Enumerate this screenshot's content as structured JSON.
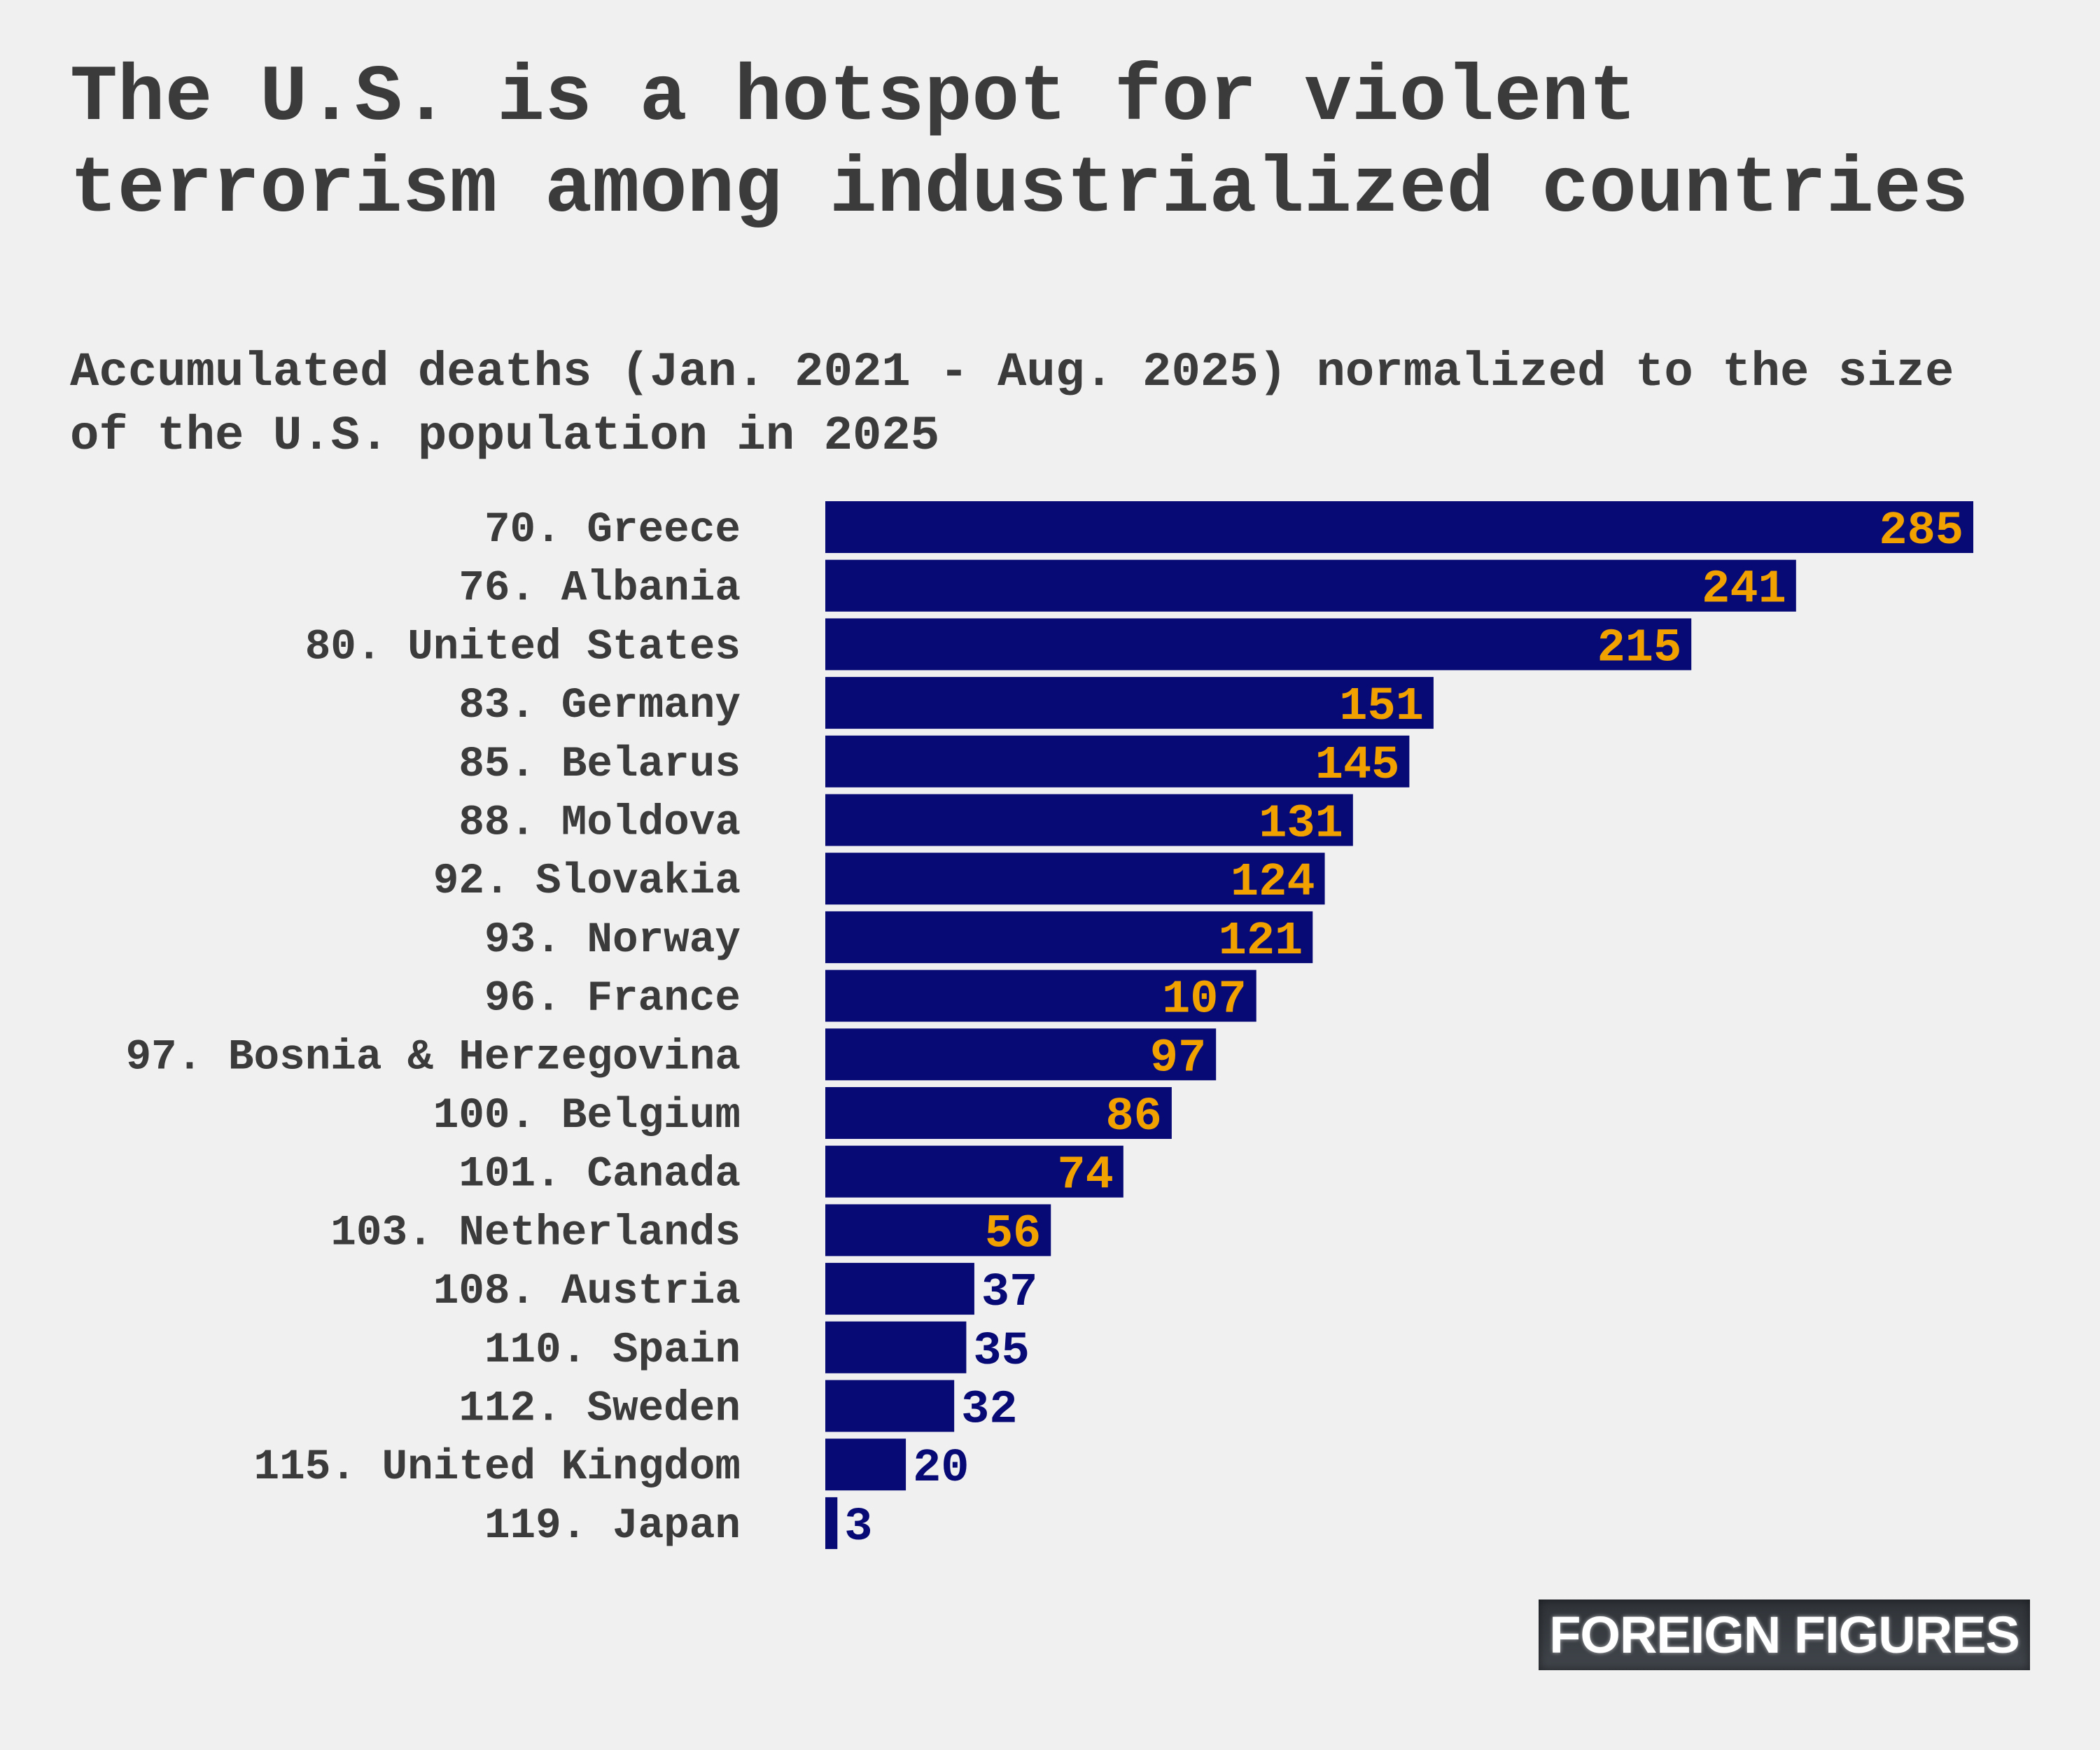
{
  "header": {
    "title": "The U.S. is a hotspot for violent terrorism among industrialized countries",
    "subtitle": "Accumulated deaths (Jan. 2021 - Aug. 2025) normalized to the size of the U.S. population in 2025"
  },
  "brand": {
    "logo_text": "FOREIGN FIGURES"
  },
  "colors": {
    "bar": "#070975",
    "value_on_bar": "#f2a200",
    "value_off_bar": "#070975",
    "text": "#3b3b3b",
    "background": "#f0f0f0"
  },
  "chart_data": {
    "type": "bar",
    "orientation": "horizontal",
    "title": "The U.S. is a hotspot for violent terrorism among industrialized countries",
    "subtitle": "Accumulated deaths (Jan. 2021 - Aug. 2025) normalized to the size of the U.S. population in 2025",
    "xlim": [
      0,
      285
    ],
    "grid": false,
    "legend": "none",
    "categories": [
      "70. Greece",
      "76. Albania",
      "80. United States",
      "83. Germany",
      "85. Belarus",
      "88. Moldova",
      "92. Slovakia",
      "93. Norway",
      "96. France",
      "97. Bosnia & Herzegovina",
      "100. Belgium",
      "101. Canada",
      "103. Netherlands",
      "108. Austria",
      "110. Spain",
      "112. Sweden",
      "115. United Kingdom",
      "119. Japan"
    ],
    "values": [
      285,
      241,
      215,
      151,
      145,
      131,
      124,
      121,
      107,
      97,
      86,
      74,
      56,
      37,
      35,
      32,
      20,
      3
    ]
  }
}
